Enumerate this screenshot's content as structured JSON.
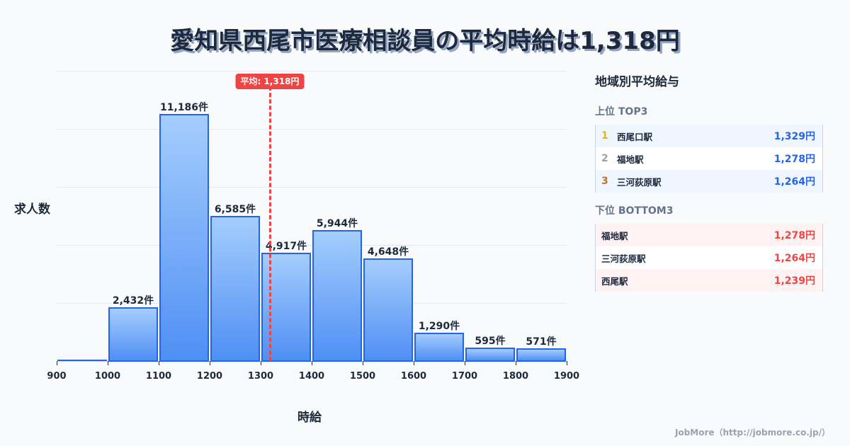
{
  "header": {
    "title": "愛知県西尾市医療相談員の平均時給は1,318円"
  },
  "chart_data": {
    "type": "bar",
    "title": "愛知県西尾市医療相談員の平均時給は1,318円",
    "xlabel": "時給",
    "ylabel": "求人数",
    "x_ticks": [
      "900",
      "1000",
      "1100",
      "1200",
      "1300",
      "1400",
      "1500",
      "1600",
      "1700",
      "1800",
      "1900"
    ],
    "bins": [
      {
        "from": 900,
        "to": 1000,
        "value": 0,
        "label": ""
      },
      {
        "from": 1000,
        "to": 1100,
        "value": 2432,
        "label": "2,432件"
      },
      {
        "from": 1100,
        "to": 1200,
        "value": 11186,
        "label": "11,186件"
      },
      {
        "from": 1200,
        "to": 1300,
        "value": 6585,
        "label": "6,585件"
      },
      {
        "from": 1300,
        "to": 1400,
        "value": 4917,
        "label": "4,917件"
      },
      {
        "from": 1400,
        "to": 1500,
        "value": 5944,
        "label": "5,944件"
      },
      {
        "from": 1500,
        "to": 1600,
        "value": 4648,
        "label": "4,648件"
      },
      {
        "from": 1600,
        "to": 1700,
        "value": 1290,
        "label": "1,290件"
      },
      {
        "from": 1700,
        "to": 1800,
        "value": 595,
        "label": "595件"
      },
      {
        "from": 1800,
        "to": 1900,
        "value": 571,
        "label": "571件"
      }
    ],
    "categories": [
      "900-1000",
      "1000-1100",
      "1100-1200",
      "1200-1300",
      "1300-1400",
      "1400-1500",
      "1500-1600",
      "1600-1700",
      "1700-1800",
      "1800-1900"
    ],
    "values": [
      0,
      2432,
      11186,
      6585,
      4917,
      5944,
      4648,
      1290,
      595,
      571
    ],
    "xlim": [
      900,
      1900
    ],
    "ylim": [
      0,
      13140
    ],
    "grid": true,
    "average": {
      "value": 1318,
      "label": "平均: 1,318円",
      "color": "#ef4444"
    },
    "bar_color": "#4f8ff4",
    "bar_border_color": "#2563eb"
  },
  "panel": {
    "title": "地域別平均給与",
    "top": {
      "title": "上位 TOP3",
      "items": [
        {
          "rank": "1",
          "name": "西尾口駅",
          "value": "1,329円",
          "rank_color": "#eab308"
        },
        {
          "rank": "2",
          "name": "福地駅",
          "value": "1,278円",
          "rank_color": "#9ca3af"
        },
        {
          "rank": "3",
          "name": "三河荻原駅",
          "value": "1,264円",
          "rank_color": "#c2702b"
        }
      ]
    },
    "bottom": {
      "title": "下位 BOTTOM3",
      "items": [
        {
          "name": "福地駅",
          "value": "1,278円"
        },
        {
          "name": "三河荻原駅",
          "value": "1,264円"
        },
        {
          "name": "西尾駅",
          "value": "1,239円"
        }
      ]
    }
  },
  "footer": {
    "credit": "JobMore（http://jobmore.co.jp/）"
  }
}
